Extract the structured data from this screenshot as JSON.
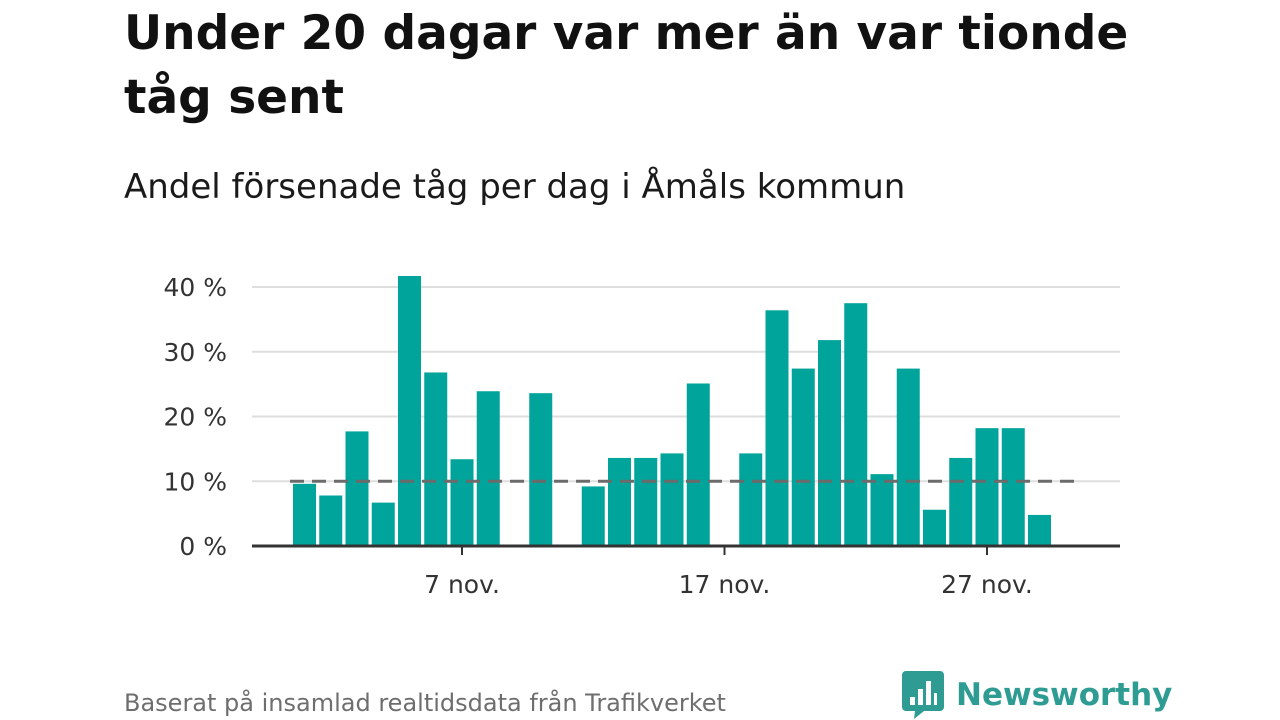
{
  "title": "Under 20 dagar var mer än var tionde tåg sent",
  "subtitle": "Andel försenade tåg per dag i Åmåls kommun",
  "source": "Baserat på insamlad realtidsdata från Trafikverket",
  "brand": {
    "name": "Newsworthy",
    "icon": "newsworthy-logo-icon",
    "color": "#2e9c92"
  },
  "chart_data": {
    "type": "bar",
    "x_unit": "day of November",
    "x": [
      1,
      2,
      3,
      4,
      5,
      6,
      7,
      8,
      9,
      10,
      11,
      12,
      13,
      14,
      15,
      16,
      17,
      18,
      19,
      20,
      21,
      22,
      23,
      24,
      25,
      26,
      27,
      28,
      29,
      30
    ],
    "values": [
      9.6,
      7.8,
      17.7,
      6.7,
      41.7,
      26.8,
      13.4,
      23.9,
      null,
      23.6,
      null,
      9.2,
      13.6,
      13.6,
      14.3,
      25.1,
      null,
      14.3,
      36.4,
      27.4,
      31.8,
      37.5,
      11.1,
      27.4,
      5.6,
      13.6,
      18.2,
      18.2,
      4.8,
      null
    ],
    "x_ticks": [
      {
        "x": 7,
        "label": "7 nov."
      },
      {
        "x": 17,
        "label": "17 nov."
      },
      {
        "x": 27,
        "label": "27 nov."
      }
    ],
    "y_ticks": [
      {
        "value": 0,
        "label": "0 %"
      },
      {
        "value": 10,
        "label": "10 %"
      },
      {
        "value": 20,
        "label": "20 %"
      },
      {
        "value": 30,
        "label": "30 %"
      },
      {
        "value": 40,
        "label": "40 %"
      }
    ],
    "ylim": [
      0,
      40
    ],
    "reference_line": {
      "value": 10,
      "style": "dashed",
      "color": "#6b6b6b"
    },
    "bar_color": "#00a49a",
    "grid": true,
    "grid_color": "#dedede",
    "axis_color": "#333333",
    "xlabel": "",
    "ylabel": ""
  }
}
